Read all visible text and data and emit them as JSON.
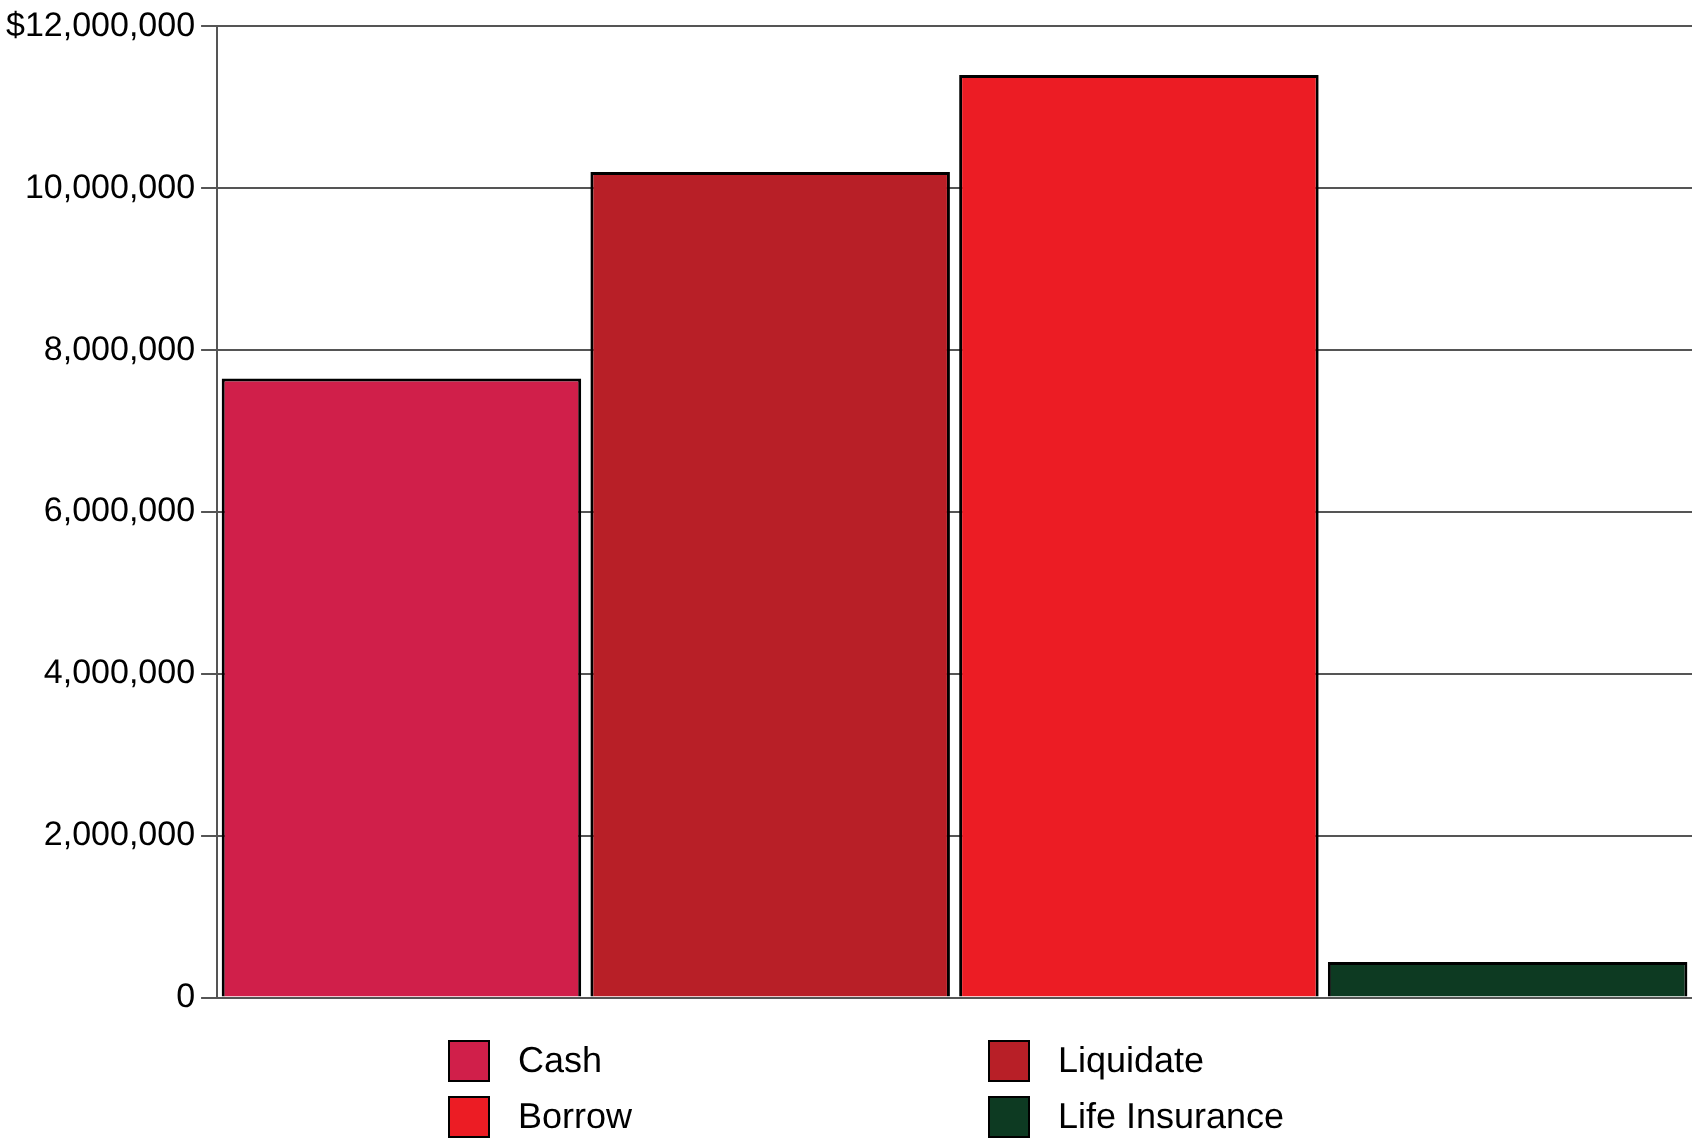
{
  "chart_data": {
    "type": "bar",
    "categories": [
      null
    ],
    "series": [
      {
        "name": "Cash",
        "color": "#d01f4a",
        "values": [
          7650000
        ]
      },
      {
        "name": "Liquidate",
        "color": "#b81f27",
        "values": [
          10200000
        ]
      },
      {
        "name": "Borrow",
        "color": "#ec1c24",
        "values": [
          11400000
        ]
      },
      {
        "name": "Life Insurance",
        "color": "#0d3a22",
        "values": [
          440000
        ]
      }
    ],
    "ylim": [
      0,
      12000000
    ],
    "yticks": [
      0,
      {
        "value": 2000000,
        "label": "2,000,000"
      },
      {
        "value": 4000000,
        "label": "4,000,000"
      },
      {
        "value": 6000000,
        "label": "6,000,000"
      },
      {
        "value": 8000000,
        "label": "8,000,000"
      },
      {
        "value": 10000000,
        "label": "10,000,000"
      },
      {
        "value": 12000000,
        "label": "$12,000,000"
      }
    ],
    "grid": "y",
    "legend": "bottom"
  }
}
